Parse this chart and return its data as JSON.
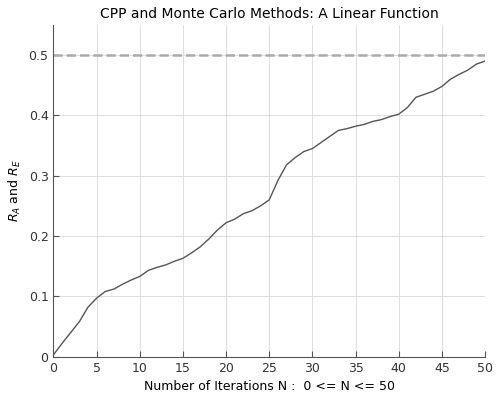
{
  "title": "CPP and Monte Carlo Methods: A Linear Function",
  "xlabel": "Number of Iterations N :  0 <= N <= 50",
  "ylabel_line1": "R",
  "ylabel_sub_A": "A",
  "ylabel_and": " and R",
  "ylabel_sub_E": "E",
  "xlim": [
    0,
    50
  ],
  "ylim": [
    0,
    0.55
  ],
  "xticks": [
    0,
    5,
    10,
    15,
    20,
    25,
    30,
    35,
    40,
    45,
    50
  ],
  "yticks": [
    0,
    0.1,
    0.2,
    0.3,
    0.4,
    0.5
  ],
  "ytick_labels": [
    "0",
    "0.1",
    "0.2",
    "0.3",
    "0.4",
    "0.5"
  ],
  "dashed_line_y": 0.5,
  "dashed_line_color": "#aaaaaa",
  "line_color": "#555555",
  "background_color": "#ffffff",
  "grid_color": "#d8d8d8",
  "title_fontsize": 10,
  "label_fontsize": 9,
  "tick_fontsize": 9,
  "curve_x": [
    0,
    1,
    2,
    3,
    4,
    5,
    6,
    7,
    8,
    9,
    10,
    11,
    12,
    13,
    14,
    15,
    16,
    17,
    18,
    19,
    20,
    21,
    22,
    23,
    24,
    25,
    26,
    27,
    28,
    29,
    30,
    31,
    32,
    33,
    34,
    35,
    36,
    37,
    38,
    39,
    40,
    41,
    42,
    43,
    44,
    45,
    46,
    47,
    48,
    49,
    50
  ],
  "curve_y": [
    0.003,
    0.022,
    0.04,
    0.058,
    0.082,
    0.097,
    0.108,
    0.112,
    0.12,
    0.127,
    0.133,
    0.143,
    0.148,
    0.152,
    0.158,
    0.163,
    0.172,
    0.182,
    0.195,
    0.21,
    0.222,
    0.228,
    0.237,
    0.242,
    0.25,
    0.26,
    0.292,
    0.318,
    0.33,
    0.34,
    0.345,
    0.355,
    0.365,
    0.375,
    0.378,
    0.382,
    0.385,
    0.39,
    0.393,
    0.398,
    0.402,
    0.413,
    0.43,
    0.435,
    0.44,
    0.448,
    0.46,
    0.468,
    0.475,
    0.485,
    0.49
  ]
}
